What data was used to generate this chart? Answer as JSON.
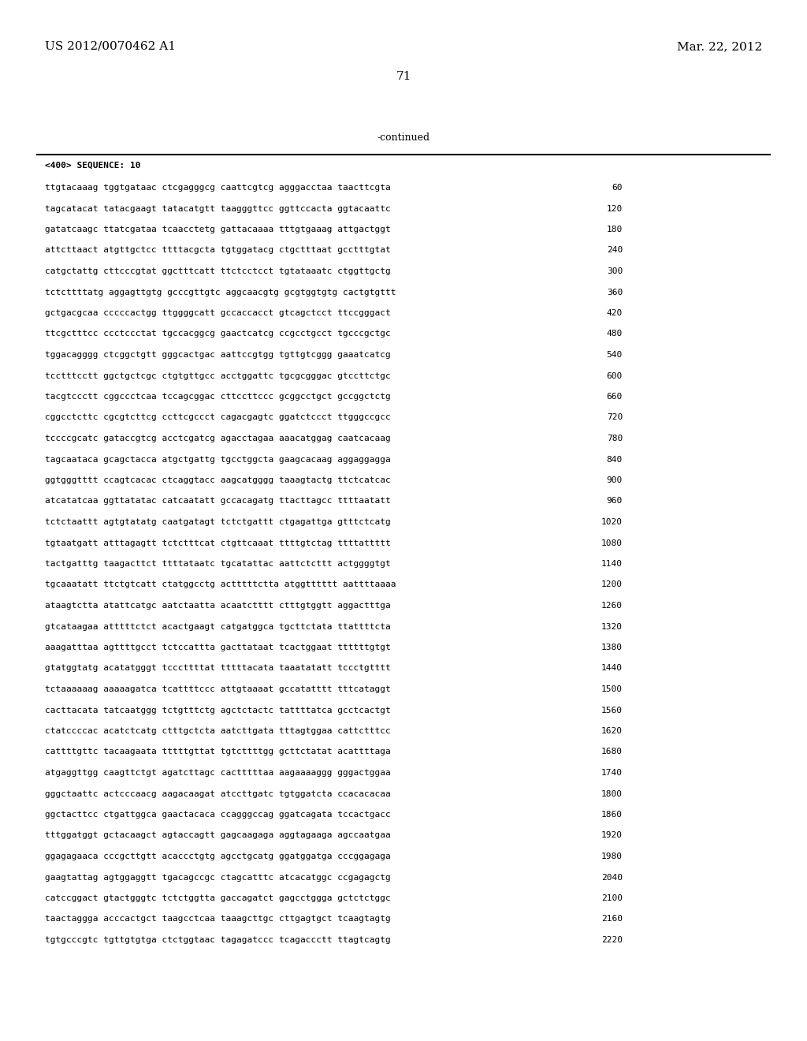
{
  "left_header": "US 2012/0070462 A1",
  "right_header": "Mar. 22, 2012",
  "page_number": "71",
  "continued_text": "-continued",
  "sequence_label": "<400> SEQUENCE: 10",
  "sequence_lines": [
    [
      "ttgtacaaag tggtgataac ctcgagggcg caattcgtcg agggacctaa taacttcgta",
      "60"
    ],
    [
      "tagcatacat tatacgaagt tatacatgtt taagggttcc ggttccacta ggtacaattc",
      "120"
    ],
    [
      "gatatcaagc ttatcgataa tcaacctetg gattacaaaa tttgtgaaag attgactggt",
      "180"
    ],
    [
      "attcttaact atgttgctcc ttttacgcta tgtggatacg ctgctttaat gcctttgtat",
      "240"
    ],
    [
      "catgctattg cttcccgtat ggctttcatt ttctcctcct tgtataaatc ctggttgctg",
      "300"
    ],
    [
      "tctcttttatg aggagttgtg gcccgttgtc aggcaacgtg gcgtggtgtg cactgtgttt",
      "360"
    ],
    [
      "gctgacgcaa cccccactgg ttggggcatt gccaccacct gtcagctcct ttccgggact",
      "420"
    ],
    [
      "ttcgctttcc ccctccctat tgccacggcg gaactcatcg ccgcctgcct tgcccgctgc",
      "480"
    ],
    [
      "tggacagggg ctcggctgtt gggcactgac aattccgtgg tgttgtcggg gaaatcatcg",
      "540"
    ],
    [
      "tcctttcctt ggctgctcgc ctgtgttgcc acctggattc tgcgcgggac gtccttctgc",
      "600"
    ],
    [
      "tacgtccctt cggccctcaa tccagcggac cttccttccc gcggcctgct gccggctctg",
      "660"
    ],
    [
      "cggcctcttc cgcgtcttcg ccttcgccct cagacgagtc ggatctccct ttgggccgcc",
      "720"
    ],
    [
      "tccccgcatc gataccgtcg acctcgatcg agacctagaa aaacatggag caatcacaag",
      "780"
    ],
    [
      "tagcaataca gcagctacca atgctgattg tgcctggcta gaagcacaag aggaggagga",
      "840"
    ],
    [
      "ggtgggtttt ccagtcacac ctcaggtacc aagcatgggg taaagtactg ttctcatcac",
      "900"
    ],
    [
      "atcatatcaa ggttatatac catcaatatt gccacagatg ttacttagcc ttttaatatt",
      "960"
    ],
    [
      "tctctaattt agtgtatatg caatgatagt tctctgattt ctgagattga gtttctcatg",
      "1020"
    ],
    [
      "tgtaatgatt atttagagtt tctctttcat ctgttcaaat ttttgtctag ttttattttt",
      "1080"
    ],
    [
      "tactgatttg taagacttct ttttataatc tgcatattac aattctcttt actggggtgt",
      "1140"
    ],
    [
      "tgcaaatatt ttctgtcatt ctatggcctg actttttctta atggtttttt aattttaaaa",
      "1200"
    ],
    [
      "ataagtctta atattcatgc aatctaatta acaatctttt ctttgtggtt aggactttga",
      "1260"
    ],
    [
      "gtcataagaa atttttctct acactgaagt catgatggca tgcttctata ttattttcta",
      "1320"
    ],
    [
      "aaagatttaa agttttgcct tctccattta gacttataat tcactggaat ttttttgtgt",
      "1380"
    ],
    [
      "gtatggtatg acatatgggt tcccttttat tttttacata taaatatatt tccctgtttt",
      "1440"
    ],
    [
      "tctaaaaaag aaaaagatca tcattttccc attgtaaaat gccatatttt tttcataggt",
      "1500"
    ],
    [
      "cacttacata tatcaatggg tctgtttctg agctctactc tattttatca gcctcactgt",
      "1560"
    ],
    [
      "ctatccccac acatctcatg ctttgctcta aatcttgata tttagtggaa cattctttcc",
      "1620"
    ],
    [
      "cattttgttc tacaagaata tttttgttat tgtcttttgg gcttctatat acattttaga",
      "1680"
    ],
    [
      "atgaggttgg caagttctgt agatcttagc cactttttaa aagaaaaggg gggactggaa",
      "1740"
    ],
    [
      "gggctaattc actcccaacg aagacaagat atccttgatc tgtggatcta ccacacacaa",
      "1800"
    ],
    [
      "ggctacttcc ctgattggca gaactacaca ccagggccag ggatcagata tccactgacc",
      "1860"
    ],
    [
      "tttggatggt gctacaagct agtaccagtt gagcaagaga aggtagaaga agccaatgaa",
      "1920"
    ],
    [
      "ggagagaaca cccgcttgtt acaccctgtg agcctgcatg ggatggatga cccggagaga",
      "1980"
    ],
    [
      "gaagtattag agtggaggtt tgacagccgc ctagcatttc atcacatggc ccgagagctg",
      "2040"
    ],
    [
      "catccggact gtactgggtc tctctggtta gaccagatct gagcctggga gctctctggc",
      "2100"
    ],
    [
      "taactaggga acccactgct taagcctcaa taaagcttgc cttgagtgct tcaagtagtg",
      "2160"
    ],
    [
      "tgtgcccgtc tgttgtgtga ctctggtaac tagagatccc tcagaccctt ttagtcagtg",
      "2220"
    ]
  ],
  "bg_color": "#ffffff",
  "text_color": "#000000",
  "header_fontsize": 11,
  "body_fontsize": 8.0,
  "page_fontsize": 11
}
